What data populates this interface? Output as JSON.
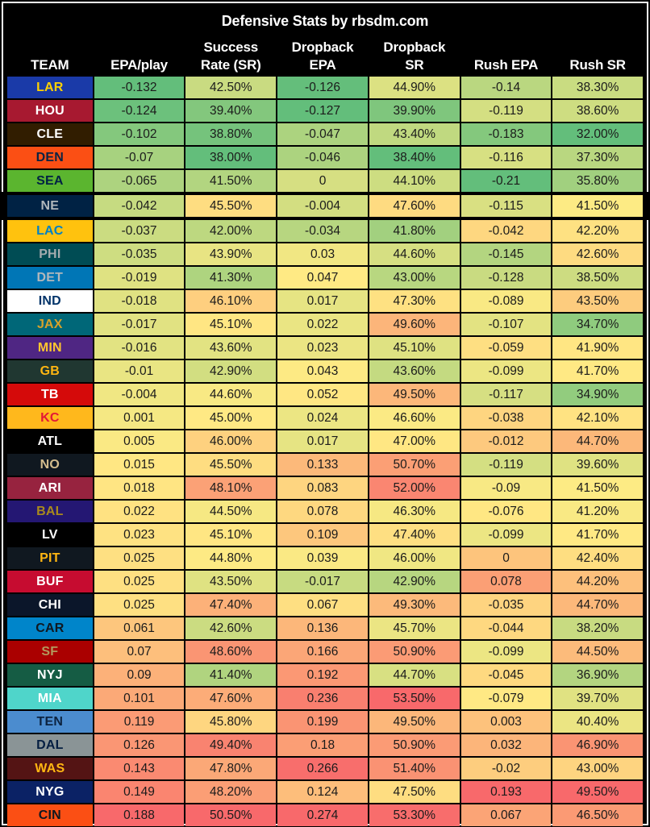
{
  "chart_data": {
    "type": "table",
    "title": "Defensive Stats by rbsdm.com",
    "columns": [
      {
        "line1": "",
        "line2": "TEAM"
      },
      {
        "line1": "",
        "line2": "EPA/play"
      },
      {
        "line1": "Success",
        "line2": "Rate (SR)"
      },
      {
        "line1": "Dropback",
        "line2": "EPA"
      },
      {
        "line1": "Dropback",
        "line2": "SR"
      },
      {
        "line1": "",
        "line2": "Rush EPA"
      },
      {
        "line1": "",
        "line2": "Rush SR"
      }
    ],
    "heatmap_scale": {
      "low": "#63BE7B",
      "mid": "#FFEB84",
      "high": "#F8696B",
      "note": "per-column scale: min=green, median=yellow, max=red"
    },
    "highlighted_team": "NE",
    "rows": [
      {
        "team": "LAR",
        "team_bg": "#1A3AA8",
        "team_fg": "#FFD100",
        "values": [
          "-0.132",
          "42.50%",
          "-0.126",
          "44.90%",
          "-0.14",
          "38.30%"
        ]
      },
      {
        "team": "HOU",
        "team_bg": "#A71930",
        "team_fg": "#FFFFFF",
        "values": [
          "-0.124",
          "39.40%",
          "-0.127",
          "39.90%",
          "-0.119",
          "38.60%"
        ]
      },
      {
        "team": "CLE",
        "team_bg": "#311D00",
        "team_fg": "#FFFFFF",
        "values": [
          "-0.102",
          "38.80%",
          "-0.047",
          "43.40%",
          "-0.183",
          "32.00%"
        ]
      },
      {
        "team": "DEN",
        "team_bg": "#FB4F14",
        "team_fg": "#0A2343",
        "values": [
          "-0.07",
          "38.00%",
          "-0.046",
          "38.40%",
          "-0.116",
          "37.30%"
        ]
      },
      {
        "team": "SEA",
        "team_bg": "#5BB52F",
        "team_fg": "#002244",
        "values": [
          "-0.065",
          "41.50%",
          "0",
          "44.10%",
          "-0.21",
          "35.80%"
        ]
      },
      {
        "team": "NE",
        "team_bg": "#002244",
        "team_fg": "#B0B7BC",
        "values": [
          "-0.042",
          "45.50%",
          "-0.004",
          "47.60%",
          "-0.115",
          "41.50%"
        ]
      },
      {
        "team": "LAC",
        "team_bg": "#FFC20E",
        "team_fg": "#0080C6",
        "values": [
          "-0.037",
          "42.00%",
          "-0.034",
          "41.80%",
          "-0.042",
          "42.20%"
        ]
      },
      {
        "team": "PHI",
        "team_bg": "#004C54",
        "team_fg": "#A5ACAF",
        "values": [
          "-0.035",
          "43.90%",
          "0.03",
          "44.60%",
          "-0.145",
          "42.60%"
        ]
      },
      {
        "team": "DET",
        "team_bg": "#0076B6",
        "team_fg": "#B0B7BC",
        "values": [
          "-0.019",
          "41.30%",
          "0.047",
          "43.00%",
          "-0.128",
          "38.50%"
        ]
      },
      {
        "team": "IND",
        "team_bg": "#FFFFFF",
        "team_fg": "#013369",
        "values": [
          "-0.018",
          "46.10%",
          "0.017",
          "47.30%",
          "-0.089",
          "43.50%"
        ]
      },
      {
        "team": "JAX",
        "team_bg": "#006778",
        "team_fg": "#D7A22A",
        "values": [
          "-0.017",
          "45.10%",
          "0.022",
          "49.60%",
          "-0.107",
          "34.70%"
        ]
      },
      {
        "team": "MIN",
        "team_bg": "#4F2683",
        "team_fg": "#FFC62F",
        "values": [
          "-0.016",
          "43.60%",
          "0.023",
          "45.10%",
          "-0.059",
          "41.90%"
        ]
      },
      {
        "team": "GB",
        "team_bg": "#203731",
        "team_fg": "#FFB612",
        "values": [
          "-0.01",
          "42.90%",
          "0.043",
          "43.60%",
          "-0.099",
          "41.70%"
        ]
      },
      {
        "team": "TB",
        "team_bg": "#D50A0A",
        "team_fg": "#FFFFFF",
        "values": [
          "-0.004",
          "44.60%",
          "0.052",
          "49.50%",
          "-0.117",
          "34.90%"
        ]
      },
      {
        "team": "KC",
        "team_bg": "#FFB81C",
        "team_fg": "#E31837",
        "values": [
          "0.001",
          "45.00%",
          "0.024",
          "46.60%",
          "-0.038",
          "42.10%"
        ]
      },
      {
        "team": "ATL",
        "team_bg": "#000000",
        "team_fg": "#FFFFFF",
        "values": [
          "0.005",
          "46.00%",
          "0.017",
          "47.00%",
          "-0.012",
          "44.70%"
        ]
      },
      {
        "team": "NO",
        "team_bg": "#101820",
        "team_fg": "#D3BC8D",
        "values": [
          "0.015",
          "45.50%",
          "0.133",
          "50.70%",
          "-0.119",
          "39.60%"
        ]
      },
      {
        "team": "ARI",
        "team_bg": "#97233F",
        "team_fg": "#FFFFFF",
        "values": [
          "0.018",
          "48.10%",
          "0.083",
          "52.00%",
          "-0.09",
          "41.50%"
        ]
      },
      {
        "team": "BAL",
        "team_bg": "#241773",
        "team_fg": "#A98A1C",
        "values": [
          "0.022",
          "44.50%",
          "0.078",
          "46.30%",
          "-0.076",
          "41.20%"
        ]
      },
      {
        "team": "LV",
        "team_bg": "#000000",
        "team_fg": "#FFFFFF",
        "values": [
          "0.023",
          "45.10%",
          "0.109",
          "47.40%",
          "-0.099",
          "41.70%"
        ]
      },
      {
        "team": "PIT",
        "team_bg": "#101820",
        "team_fg": "#FFB612",
        "values": [
          "0.025",
          "44.80%",
          "0.039",
          "46.00%",
          "0",
          "42.40%"
        ]
      },
      {
        "team": "BUF",
        "team_bg": "#C60C30",
        "team_fg": "#FFFFFF",
        "values": [
          "0.025",
          "43.50%",
          "-0.017",
          "42.90%",
          "0.078",
          "44.20%"
        ]
      },
      {
        "team": "CHI",
        "team_bg": "#0B162A",
        "team_fg": "#FFFFFF",
        "values": [
          "0.025",
          "47.40%",
          "0.067",
          "49.30%",
          "-0.035",
          "44.70%"
        ]
      },
      {
        "team": "CAR",
        "team_bg": "#0085CA",
        "team_fg": "#101820",
        "values": [
          "0.061",
          "42.60%",
          "0.136",
          "45.70%",
          "-0.044",
          "38.20%"
        ]
      },
      {
        "team": "SF",
        "team_bg": "#AA0000",
        "team_fg": "#B3995D",
        "values": [
          "0.07",
          "48.60%",
          "0.166",
          "50.90%",
          "-0.099",
          "44.50%"
        ]
      },
      {
        "team": "NYJ",
        "team_bg": "#155C44",
        "team_fg": "#FFFFFF",
        "values": [
          "0.09",
          "41.40%",
          "0.192",
          "44.70%",
          "-0.045",
          "36.90%"
        ]
      },
      {
        "team": "MIA",
        "team_bg": "#4FD5CA",
        "team_fg": "#FFFFFF",
        "values": [
          "0.101",
          "47.60%",
          "0.236",
          "53.50%",
          "-0.079",
          "39.70%"
        ]
      },
      {
        "team": "TEN",
        "team_bg": "#4B8CCF",
        "team_fg": "#0C2340",
        "values": [
          "0.119",
          "45.80%",
          "0.199",
          "49.50%",
          "0.003",
          "40.40%"
        ]
      },
      {
        "team": "DAL",
        "team_bg": "#8A9496",
        "team_fg": "#041E42",
        "values": [
          "0.126",
          "49.40%",
          "0.18",
          "50.90%",
          "0.032",
          "46.90%"
        ]
      },
      {
        "team": "WAS",
        "team_bg": "#541414",
        "team_fg": "#FFB612",
        "values": [
          "0.143",
          "47.80%",
          "0.266",
          "51.40%",
          "-0.02",
          "43.00%"
        ]
      },
      {
        "team": "NYG",
        "team_bg": "#0B2265",
        "team_fg": "#FFFFFF",
        "values": [
          "0.149",
          "48.20%",
          "0.124",
          "47.50%",
          "0.193",
          "49.50%"
        ]
      },
      {
        "team": "CIN",
        "team_bg": "#FB4F14",
        "team_fg": "#101820",
        "values": [
          "0.188",
          "50.50%",
          "0.274",
          "53.30%",
          "0.067",
          "46.50%"
        ]
      }
    ]
  }
}
